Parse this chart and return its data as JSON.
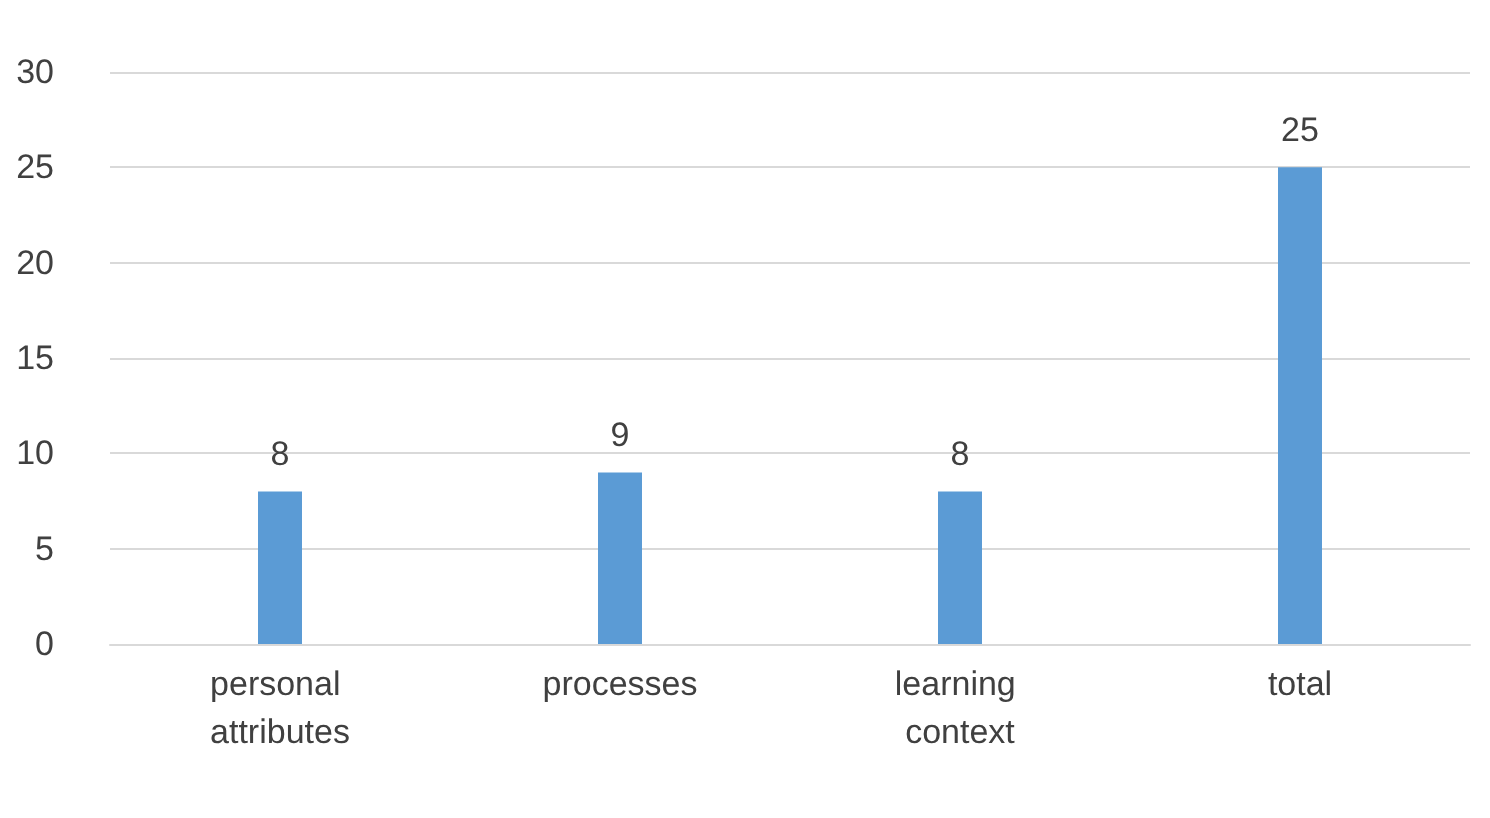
{
  "chart_data": {
    "type": "bar",
    "categories": [
      "personal attributes",
      "processes",
      "learning context",
      "total"
    ],
    "values": [
      8,
      9,
      8,
      25
    ],
    "color": "#5b9bd5",
    "ylim": [
      0,
      30
    ],
    "yticks": [
      0,
      5,
      10,
      15,
      20,
      25,
      30
    ],
    "grid": "y",
    "data_labels": true
  }
}
